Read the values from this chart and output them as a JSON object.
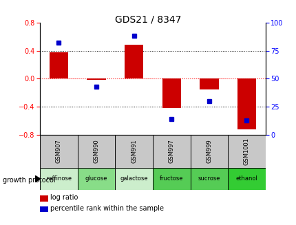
{
  "title": "GDS21 / 8347",
  "samples": [
    "GSM907",
    "GSM990",
    "GSM991",
    "GSM997",
    "GSM999",
    "GSM1001"
  ],
  "conditions": [
    "raffinose",
    "glucose",
    "galactose",
    "fructose",
    "sucrose",
    "ethanol"
  ],
  "log_ratio": [
    0.38,
    -0.02,
    0.48,
    -0.42,
    -0.15,
    -0.72
  ],
  "percentile_rank": [
    82,
    43,
    88,
    14,
    30,
    13
  ],
  "ylim_left": [
    -0.8,
    0.8
  ],
  "ylim_right": [
    0,
    100
  ],
  "bar_color": "#cc0000",
  "dot_color": "#0000cc",
  "bg_color": "#ffffff",
  "growth_protocol_label": "growth protocol",
  "legend_log_ratio": "log ratio",
  "legend_percentile": "percentile rank within the sample",
  "condition_colors": [
    "#cceecc",
    "#88dd88",
    "#cceecc",
    "#55cc55",
    "#55cc55",
    "#33cc33"
  ],
  "sample_bg_color": "#c8c8c8",
  "label_fontsize": 7,
  "title_fontsize": 10,
  "tick_fontsize": 7
}
